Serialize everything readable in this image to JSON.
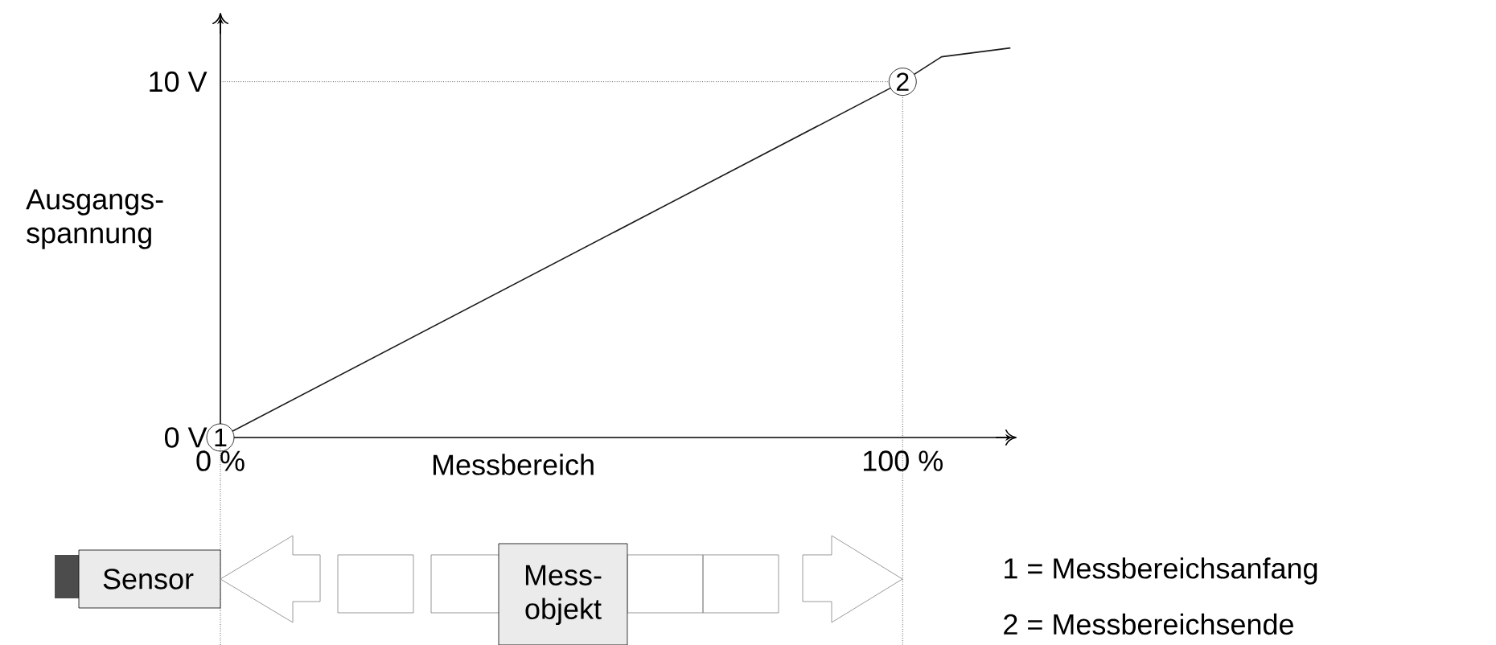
{
  "chart_data": {
    "type": "line",
    "xlabel": "Messbereich",
    "ylabel": "Ausgangs-spannung",
    "x": [
      0,
      100,
      105.7,
      115.8
    ],
    "series": [
      {
        "color": "#1a1a1a",
        "values": [
          0,
          10,
          10.7,
          10.95
        ]
      }
    ],
    "xlim": [
      0,
      116
    ],
    "ylim": [
      0,
      11.8
    ],
    "xticks": [
      {
        "value": 0,
        "label": "0 %"
      },
      {
        "value": 100,
        "label": "100 %"
      }
    ],
    "yticks": [
      {
        "value": 0,
        "label": "0 V"
      },
      {
        "value": 10,
        "label": "10 V"
      }
    ],
    "ref_lines": [
      {
        "axis": "y",
        "value": 10,
        "line_style": "dotted"
      },
      {
        "axis": "x",
        "value": 100,
        "line_style": "dotted"
      }
    ],
    "annotations": [
      {
        "text": "1",
        "x": 0,
        "y": 0
      },
      {
        "text": "2",
        "x": 100,
        "y": 10
      },
      "Sensor",
      "Mess-objekt",
      "1 = Messbereichsanfang",
      "2 = Messbereichsende"
    ],
    "grid": false,
    "line_style": "solid"
  }
}
